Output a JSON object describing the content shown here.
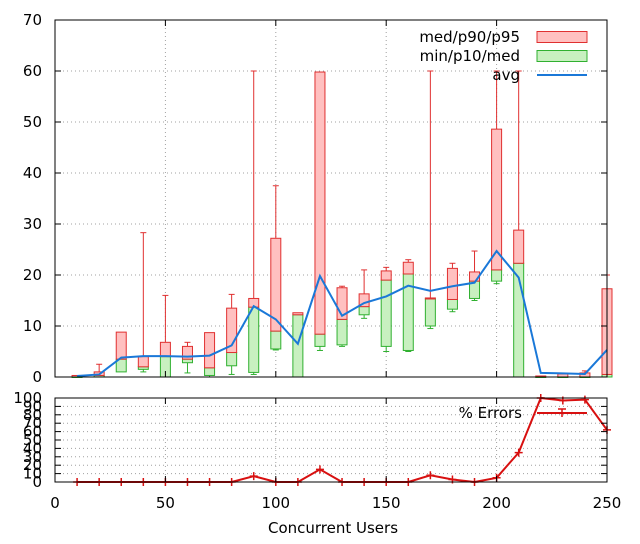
{
  "chart_data": [
    {
      "type": "box",
      "xlim": [
        0,
        250
      ],
      "ylim": [
        0,
        70
      ],
      "yticks": [
        0,
        10,
        20,
        30,
        40,
        50,
        60,
        70
      ],
      "xticks": [
        0,
        50,
        100,
        150,
        200,
        250
      ],
      "grid": true,
      "legend_position": "top-right",
      "legend": {
        "upper": "med/p90/p95",
        "lower": "min/p10/med",
        "avg": "avg"
      },
      "colors": {
        "upper_fill": "#ffc0c0",
        "upper_stroke": "#e03030",
        "lower_fill": "#c8f0c0",
        "lower_stroke": "#30b030",
        "avg_line": "#1a78d8"
      },
      "groups": [
        {
          "x": 10,
          "min": 0,
          "p10": 0,
          "med": 0,
          "p90": 0.3,
          "p95": 0.3,
          "avg": 0.2
        },
        {
          "x": 20,
          "min": 0,
          "p10": 0,
          "med": 0.3,
          "p90": 1,
          "p95": 2.5,
          "avg": 0.5
        },
        {
          "x": 30,
          "min": 1,
          "p10": 1,
          "med": 3.5,
          "p90": 8.8,
          "p95": 8.8,
          "avg": 3.8
        },
        {
          "x": 40,
          "min": 1,
          "p10": 1.5,
          "med": 2,
          "p90": 4,
          "p95": 28.3,
          "avg": 4.1
        },
        {
          "x": 50,
          "min": 0,
          "p10": 0,
          "med": 4,
          "p90": 6.8,
          "p95": 16,
          "avg": 4.1
        },
        {
          "x": 60,
          "min": 0.8,
          "p10": 2.8,
          "med": 3.5,
          "p90": 6,
          "p95": 6.8,
          "avg": 4
        },
        {
          "x": 70,
          "min": 0,
          "p10": 0.3,
          "med": 1.8,
          "p90": 8.7,
          "p95": 8.7,
          "avg": 4.2
        },
        {
          "x": 80,
          "min": 0.5,
          "p10": 2.2,
          "med": 4.8,
          "p90": 13.5,
          "p95": 16.2,
          "avg": 6.2
        },
        {
          "x": 90,
          "min": 0.5,
          "p10": 0.9,
          "med": 13.7,
          "p90": 15.4,
          "p95": 60,
          "avg": 13.9
        },
        {
          "x": 100,
          "min": 5.3,
          "p10": 5.5,
          "med": 9,
          "p90": 27.2,
          "p95": 37.5,
          "avg": 11.3
        },
        {
          "x": 110,
          "min": 0,
          "p10": 0,
          "med": 12.2,
          "p90": 12.6,
          "p95": 12.6,
          "avg": 6.5
        },
        {
          "x": 120,
          "min": 5.2,
          "p10": 6,
          "med": 8.4,
          "p90": 59.8,
          "p95": 59.8,
          "avg": 19.8
        },
        {
          "x": 130,
          "min": 6,
          "p10": 6.3,
          "med": 11.3,
          "p90": 17.5,
          "p95": 17.8,
          "avg": 12
        },
        {
          "x": 140,
          "min": 11.5,
          "p10": 12.2,
          "med": 13.8,
          "p90": 16.3,
          "p95": 21,
          "avg": 14.5
        },
        {
          "x": 150,
          "min": 5,
          "p10": 6,
          "med": 19,
          "p90": 20.8,
          "p95": 21.5,
          "avg": 15.8
        },
        {
          "x": 160,
          "min": 5,
          "p10": 5.2,
          "med": 20.2,
          "p90": 22.5,
          "p95": 23,
          "avg": 17.9
        },
        {
          "x": 170,
          "min": 9.5,
          "p10": 10,
          "med": 15.3,
          "p90": 15.5,
          "p95": 60,
          "avg": 16.9
        },
        {
          "x": 180,
          "min": 12.8,
          "p10": 13.3,
          "med": 15.2,
          "p90": 21.3,
          "p95": 22.3,
          "avg": 17.8
        },
        {
          "x": 190,
          "min": 15,
          "p10": 15.4,
          "med": 18.8,
          "p90": 20.6,
          "p95": 24.7,
          "avg": 18.5
        },
        {
          "x": 200,
          "min": 18.3,
          "p10": 18.8,
          "med": 21,
          "p90": 48.6,
          "p95": 60,
          "avg": 24.7
        },
        {
          "x": 210,
          "min": 0,
          "p10": 0,
          "med": 22.3,
          "p90": 28.8,
          "p95": 60,
          "avg": 19.5
        },
        {
          "x": 220,
          "min": 0,
          "p10": 0,
          "med": 0,
          "p90": 0.2,
          "p95": 0.2,
          "avg": 0.8
        },
        {
          "x": 230,
          "min": 0,
          "p10": 0,
          "med": 0,
          "p90": 0.6,
          "p95": 0.6,
          "avg": 0.7
        },
        {
          "x": 240,
          "min": 0,
          "p10": 0,
          "med": 0,
          "p90": 0.8,
          "p95": 1.2,
          "avg": 0.6
        },
        {
          "x": 250,
          "min": 0,
          "p10": 0,
          "med": 0.5,
          "p90": 17.3,
          "p95": 20,
          "avg": 5.3
        }
      ]
    },
    {
      "type": "line",
      "xlim": [
        0,
        250
      ],
      "ylim": [
        0,
        100
      ],
      "yticks": [
        0,
        10,
        20,
        30,
        40,
        50,
        60,
        70,
        80,
        90,
        100
      ],
      "xticks": [
        0,
        50,
        100,
        150,
        200,
        250
      ],
      "xlabel": "Concurrent Users",
      "grid": true,
      "legend_position": "top-right",
      "color": "#d81010",
      "series": [
        {
          "name": "% Errors",
          "x": [
            10,
            20,
            30,
            40,
            50,
            60,
            70,
            80,
            90,
            100,
            110,
            120,
            130,
            140,
            150,
            160,
            170,
            180,
            190,
            200,
            210,
            220,
            230,
            240,
            250
          ],
          "values": [
            0,
            0,
            0,
            0,
            0,
            0,
            0,
            0,
            7,
            0,
            0,
            15,
            0,
            0,
            0,
            0,
            8,
            3,
            0,
            5,
            35,
            100,
            97,
            98,
            62
          ]
        }
      ]
    }
  ]
}
